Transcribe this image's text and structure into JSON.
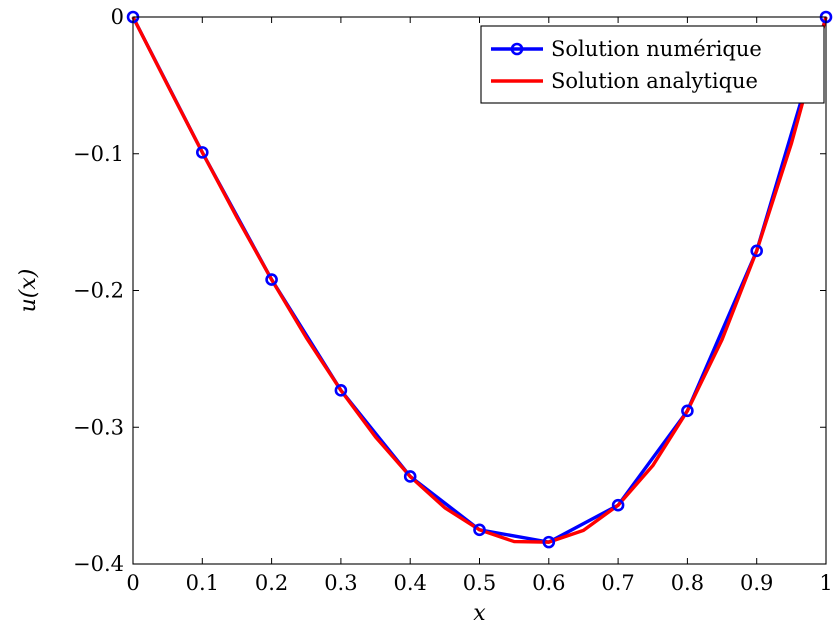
{
  "chart_data": {
    "type": "line",
    "xlabel": "x",
    "ylabel": "u(x)",
    "xlim": [
      0,
      1
    ],
    "ylim": [
      -0.4,
      0
    ],
    "grid": false,
    "legend_position": "top-right",
    "x_ticks": [
      0,
      0.1,
      0.2,
      0.3,
      0.4,
      0.5,
      0.6,
      0.7,
      0.8,
      0.9,
      1
    ],
    "x_tick_labels": [
      "0",
      "0.1",
      "0.2",
      "0.3",
      "0.4",
      "0.5",
      "0.6",
      "0.7",
      "0.8",
      "0.9",
      "1"
    ],
    "y_ticks": [
      0,
      -0.1,
      -0.2,
      -0.3,
      -0.4
    ],
    "y_tick_labels": [
      "0",
      "−0.1",
      "−0.2",
      "−0.3",
      "−0.4"
    ],
    "series": [
      {
        "name": "Solution numérique",
        "color": "#0000ff",
        "marker": "circle",
        "x": [
          0,
          0.1,
          0.2,
          0.3,
          0.4,
          0.5,
          0.6,
          0.7,
          0.8,
          0.9,
          1
        ],
        "y": [
          0,
          -0.099,
          -0.192,
          -0.273,
          -0.336,
          -0.375,
          -0.384,
          -0.357,
          -0.288,
          -0.171,
          0
        ]
      },
      {
        "name": "Solution analytique",
        "color": "#ff0000",
        "marker": "none",
        "x": [
          0,
          0.05,
          0.1,
          0.15,
          0.2,
          0.25,
          0.3,
          0.35,
          0.4,
          0.45,
          0.5,
          0.55,
          0.6,
          0.65,
          0.7,
          0.75,
          0.8,
          0.85,
          0.9,
          0.95,
          1
        ],
        "y": [
          0,
          -0.0499,
          -0.099,
          -0.1466,
          -0.192,
          -0.2344,
          -0.273,
          -0.3071,
          -0.336,
          -0.3589,
          -0.375,
          -0.3836,
          -0.384,
          -0.3754,
          -0.357,
          -0.3281,
          -0.288,
          -0.2359,
          -0.171,
          -0.0926,
          0
        ]
      }
    ]
  }
}
